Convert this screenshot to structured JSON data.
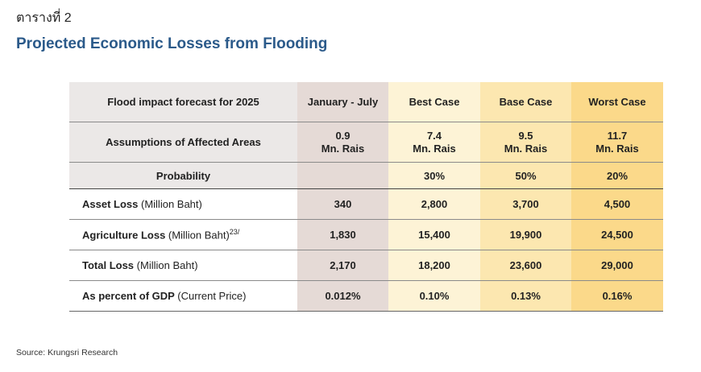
{
  "table_number": "ตารางที่ 2",
  "title": "Projected Economic Losses from Flooding",
  "header": {
    "label": "Flood impact forecast for 2025",
    "columns": [
      "January - July",
      "Best Case",
      "Base Case",
      "Worst Case"
    ]
  },
  "assumptions": {
    "label": "Assumptions of Affected Areas",
    "values": [
      {
        "num": "0.9",
        "unit": "Mn. Rais"
      },
      {
        "num": "7.4",
        "unit": "Mn. Rais"
      },
      {
        "num": "9.5",
        "unit": "Mn. Rais"
      },
      {
        "num": "11.7",
        "unit": "Mn. Rais"
      }
    ]
  },
  "probability": {
    "label": "Probability",
    "values": [
      "",
      "30%",
      "50%",
      "20%"
    ]
  },
  "rows": [
    {
      "label": "Asset Loss",
      "unit": "(Million Baht)",
      "sup": "",
      "values": [
        "340",
        "2,800",
        "3,700",
        "4,500"
      ]
    },
    {
      "label": "Agriculture Loss",
      "unit": "(Million Baht)",
      "sup": "23/",
      "values": [
        "1,830",
        "15,400",
        "19,900",
        "24,500"
      ]
    },
    {
      "label": "Total Loss",
      "unit": "(Million Baht)",
      "sup": "",
      "values": [
        "2,170",
        "18,200",
        "23,600",
        "29,000"
      ]
    },
    {
      "label": "As percent of GDP",
      "unit": "(Current Price)",
      "sup": "",
      "values": [
        "0.012%",
        "0.10%",
        "0.13%",
        "0.16%"
      ]
    }
  ],
  "source": "Source: Krungsri Research",
  "colors": {
    "title": "#2b5a8a",
    "label_bg": "#ebe8e7",
    "jan_jul_bg": "#e5dad6",
    "best_bg": "#fdf3d6",
    "base_bg": "#fce7b0",
    "worst_bg": "#fbd98a"
  }
}
